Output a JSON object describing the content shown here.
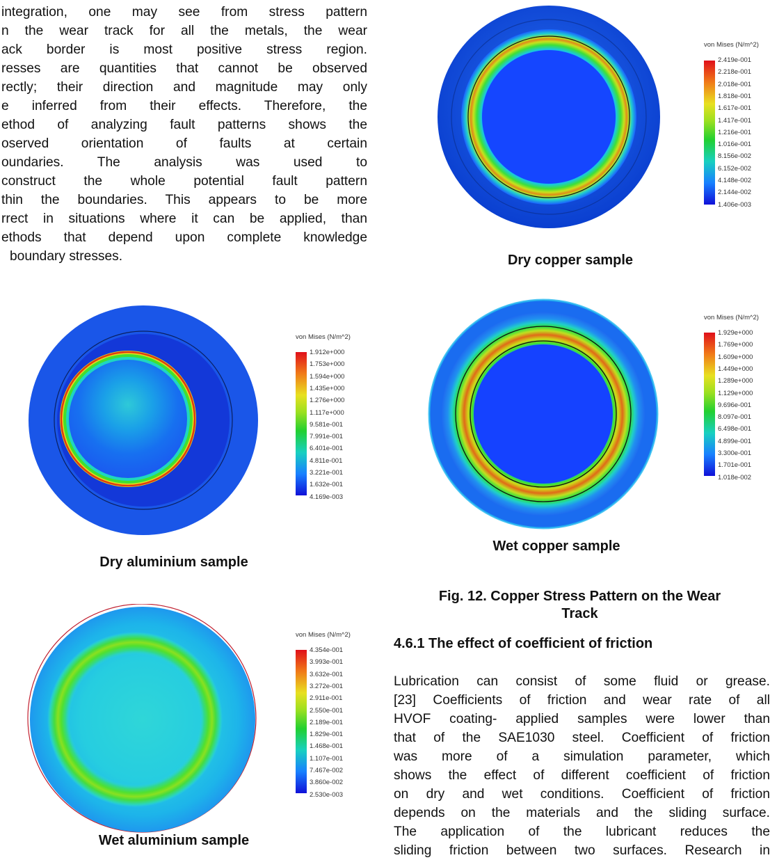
{
  "left_text": {
    "lines": [
      "integration, one may see from stress pattern",
      "n the wear track for all the metals, the wear",
      "ack border is most positive stress region.",
      "resses are quantities that cannot be observed",
      "rectly; their direction and magnitude may only",
      "e inferred from their effects. Therefore, the",
      "ethod of analyzing fault patterns shows the",
      "oserved orientation of faults at certain",
      "oundaries. The analysis was used to",
      "construct the whole potential fault pattern",
      "thin the boundaries. This appears to be more",
      "rrect in situations where it can be applied, than",
      "ethods that depend upon complete knowledge",
      "boundary stresses."
    ]
  },
  "figures": {
    "dry_copper": {
      "caption": "Dry copper sample",
      "legend_title": "von Mises (N/m^2)",
      "ticks": [
        "2.419e-001",
        "2.218e-001",
        "2.018e-001",
        "1.818e-001",
        "1.617e-001",
        "1.417e-001",
        "1.216e-001",
        "1.016e-001",
        "8.156e-002",
        "6.152e-002",
        "4.148e-002",
        "2.144e-002",
        "1.406e-003"
      ]
    },
    "wet_copper": {
      "caption": "Wet copper sample",
      "legend_title": "von Mises (N/m^2)",
      "ticks": [
        "1.929e+000",
        "1.769e+000",
        "1.609e+000",
        "1.449e+000",
        "1.289e+000",
        "1.129e+000",
        "9.696e-001",
        "8.097e-001",
        "6.498e-001",
        "4.899e-001",
        "3.300e-001",
        "1.701e-001",
        "1.018e-002"
      ]
    },
    "dry_aluminium": {
      "caption": "Dry aluminium sample",
      "legend_title": "von Mises (N/m^2)",
      "ticks": [
        "1.912e+000",
        "1.753e+000",
        "1.594e+000",
        "1.435e+000",
        "1.276e+000",
        "1.117e+000",
        "9.581e-001",
        "7.991e-001",
        "6.401e-001",
        "4.811e-001",
        "3.221e-001",
        "1.632e-001",
        "4.169e-003"
      ]
    },
    "wet_aluminium": {
      "caption": "Wet aluminium sample",
      "legend_title": "von Mises (N/m^2)",
      "ticks": [
        "4.354e-001",
        "3.993e-001",
        "3.632e-001",
        "3.272e-001",
        "2.911e-001",
        "2.550e-001",
        "2.189e-001",
        "1.829e-001",
        "1.468e-001",
        "1.107e-001",
        "7.467e-002",
        "3.860e-002",
        "2.530e-003"
      ]
    }
  },
  "fig12_caption": {
    "line1": "Fig. 12.  Copper Stress Pattern on the Wear",
    "line2": "Track"
  },
  "section": {
    "heading": "4.6.1 The effect of coefficient of friction",
    "lines": [
      "Lubrication can consist of some fluid or grease.",
      "[23] Coefficients of friction and wear rate of all",
      "HVOF coating- applied samples were lower than",
      "that of the SAE1030 steel. Coefficient of friction",
      "was more of a simulation parameter, which",
      "shows the effect of different coefficient of friction",
      "on dry and wet conditions. Coefficient of friction",
      "depends on the materials and the sliding surface.",
      "The application of the lubricant reduces the",
      "sliding friction between two surfaces. Research in"
    ]
  }
}
